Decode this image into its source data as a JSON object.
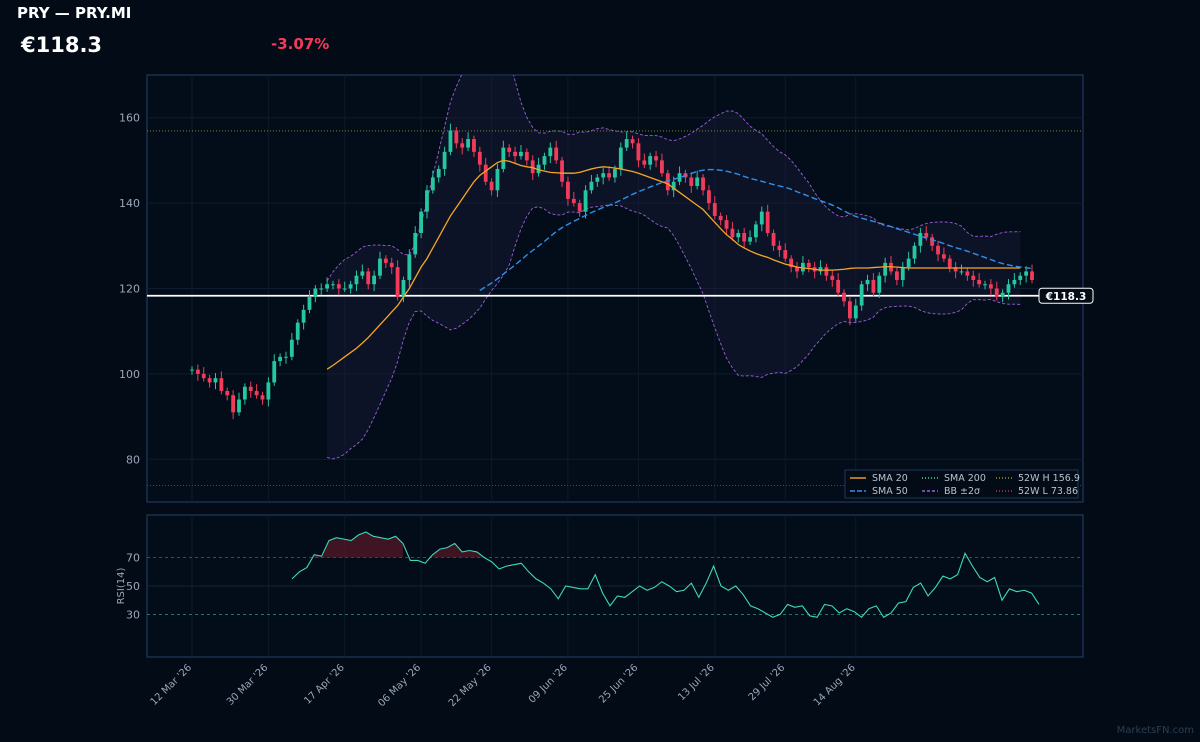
{
  "header": {
    "title": "PRY — PRY.MI",
    "price": "€118.3",
    "change": "-3.07%"
  },
  "watermark": "MarketsFN.com",
  "colors": {
    "background": "#020b16",
    "up": "#26c6a0",
    "down": "#f23b5a",
    "sma20": "#f5a623",
    "sma50": "#2f8fe8",
    "bollinger": "#9a5fd6",
    "rsi": "#3fd9b5",
    "high_line": "#8a9a2a",
    "low_line": "#b0393b"
  },
  "chart_data": {
    "type": "candlestick",
    "price_axis": {
      "ylim": [
        70,
        170
      ],
      "ticks": [
        80,
        100,
        120,
        140,
        160
      ]
    },
    "x_tick_labels": [
      "12 Mar '26",
      "30 Mar '26",
      "17 Apr '26",
      "06 May '26",
      "22 May '26",
      "09 Jun '26",
      "25 Jun '26",
      "13 Jul '26",
      "29 Jul '26",
      "14 Aug '26"
    ],
    "last_price": 118.3,
    "last_price_label": "€118.3",
    "week52_high": 156.9,
    "week52_low": 73.86,
    "close": [
      101,
      100,
      99,
      98,
      99,
      96,
      95,
      91,
      94,
      97,
      96,
      95,
      94,
      98,
      103,
      104,
      104,
      108,
      112,
      115,
      118,
      120,
      120,
      121,
      121,
      120,
      120,
      121,
      123,
      124,
      121,
      123,
      127,
      126,
      125,
      118,
      122,
      128,
      133,
      138,
      143,
      146,
      148,
      152,
      157,
      154,
      153,
      155,
      152,
      149,
      145,
      143,
      148,
      153,
      152,
      151,
      152,
      150,
      147,
      149,
      151,
      153,
      150,
      145,
      141,
      140,
      138,
      143,
      145,
      146,
      147,
      146,
      148,
      153,
      155,
      154,
      150,
      149,
      151,
      150,
      147,
      143,
      145,
      147,
      146,
      144,
      146,
      143,
      140,
      137,
      136,
      134,
      132,
      133,
      131,
      132,
      135,
      138,
      133,
      130,
      129,
      127,
      125,
      124,
      126,
      125,
      124,
      125,
      123,
      122,
      119,
      117,
      113,
      116,
      121,
      122,
      119,
      123,
      126,
      124,
      122,
      125,
      127,
      130,
      133,
      132,
      130,
      128,
      127,
      125,
      124,
      124,
      123,
      122,
      121,
      121,
      120,
      118,
      119,
      121,
      122,
      123,
      124,
      122
    ],
    "open": [
      101,
      101,
      100,
      99,
      98,
      99,
      96,
      95,
      91,
      94,
      97,
      96,
      95,
      94,
      98,
      103,
      104,
      104,
      108,
      112,
      115,
      118,
      120,
      120,
      121,
      121,
      120,
      120,
      121,
      123,
      124,
      121,
      123,
      127,
      126,
      125,
      118,
      122,
      128,
      133,
      138,
      143,
      146,
      148,
      152,
      157,
      154,
      153,
      155,
      152,
      149,
      145,
      143,
      148,
      153,
      152,
      151,
      152,
      150,
      147,
      149,
      151,
      153,
      150,
      145,
      141,
      140,
      138,
      143,
      145,
      146,
      147,
      146,
      148,
      153,
      155,
      154,
      150,
      149,
      151,
      150,
      147,
      143,
      145,
      147,
      146,
      144,
      146,
      143,
      140,
      137,
      136,
      134,
      132,
      133,
      131,
      132,
      135,
      138,
      133,
      130,
      129,
      127,
      125,
      124,
      126,
      125,
      124,
      125,
      123,
      122,
      119,
      117,
      113,
      116,
      121,
      122,
      119,
      123,
      126,
      124,
      122,
      125,
      127,
      130,
      133,
      132,
      130,
      128,
      127,
      125,
      124,
      124,
      123,
      122,
      121,
      121,
      120,
      118,
      119,
      121,
      122,
      123,
      124
    ],
    "sma20": [
      null,
      null,
      null,
      null,
      null,
      null,
      null,
      null,
      null,
      null,
      null,
      null,
      null,
      null,
      null,
      null,
      null,
      null,
      null,
      null,
      null,
      null,
      null,
      101.1,
      102,
      103,
      104,
      105,
      106,
      107.2,
      108.5,
      110,
      111.5,
      113,
      114.5,
      116,
      118,
      120,
      122.5,
      125,
      127,
      129.5,
      132,
      134.5,
      137,
      139,
      141,
      143,
      145,
      146.5,
      147.5,
      148.5,
      149.5,
      150,
      149.8,
      149.3,
      148.8,
      148.5,
      148.3,
      147.8,
      147.5,
      147.2,
      147.1,
      147,
      147,
      147,
      147.2,
      147.6,
      148,
      148.3,
      148.5,
      148.4,
      148.2,
      148,
      147.7,
      147.4,
      147,
      146.5,
      146,
      145.5,
      145,
      144.5,
      143.5,
      142.5,
      141.5,
      140.5,
      139.5,
      138.5,
      137,
      135.5,
      134,
      132.6,
      131.5,
      130.3,
      129.5,
      128.8,
      128.2,
      127.7,
      127.3,
      126.7,
      126.2,
      125.7,
      125.4,
      125,
      124.8,
      124.7,
      124.5,
      124.3,
      124.3,
      124.3,
      124.4,
      124.5,
      124.7,
      124.8,
      124.8,
      124.8,
      124.9,
      125,
      125.1,
      125.1,
      125,
      124.9,
      124.8,
      124.8,
      124.8,
      124.8,
      124.8,
      124.8,
      124.8,
      124.8,
      124.8,
      124.8,
      124.8,
      124.8,
      124.8,
      124.8,
      124.8,
      124.8,
      124.8,
      124.8,
      124.8,
      124.8
    ],
    "rsi14": [
      55,
      60,
      63,
      72,
      71,
      82,
      84,
      83,
      82,
      86,
      88,
      85,
      84,
      83,
      85,
      80,
      68,
      68,
      66,
      72,
      76,
      77,
      80,
      74,
      75,
      74,
      70,
      67,
      62,
      64,
      65,
      66,
      60,
      55,
      52,
      48,
      41,
      50,
      49,
      48,
      48,
      58,
      45,
      36,
      43,
      42,
      46,
      50,
      47,
      49,
      53,
      50,
      46,
      47,
      52,
      42,
      52,
      64,
      50,
      47,
      50,
      44,
      36,
      34,
      31,
      28,
      30,
      37,
      35,
      36,
      29,
      28,
      37,
      36,
      31,
      34,
      32,
      28,
      34,
      36,
      28,
      31,
      38,
      39,
      49,
      52,
      43,
      49,
      57,
      55,
      58,
      73,
      64,
      56,
      53,
      56,
      40,
      48,
      46,
      47,
      45,
      37
    ],
    "rsi_axis": {
      "ylim": [
        0,
        100
      ],
      "ticks": [
        30,
        50,
        70
      ],
      "label": "RSI(14)"
    },
    "legend": [
      "SMA 20",
      "SMA 50",
      "SMA 200",
      "BB ±2σ",
      "52W H 156.9",
      "52W L 73.86"
    ]
  }
}
